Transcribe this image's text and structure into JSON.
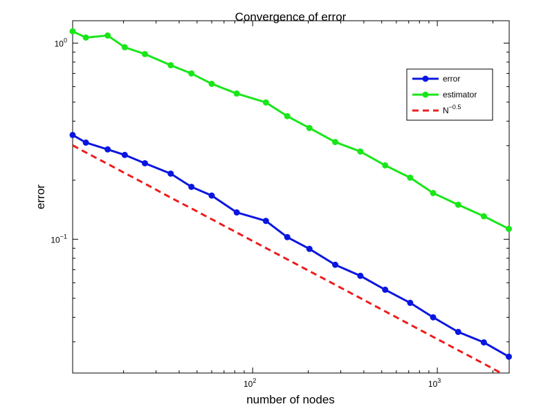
{
  "chart_data": {
    "type": "line",
    "title": "Convergence of error",
    "x_label": "number of nodes",
    "y_label": "error",
    "xscale": "log",
    "yscale": "log",
    "x": [
      10.6,
      12.5,
      16.4,
      20.3,
      26.1,
      36,
      46.6,
      60,
      82,
      118,
      154,
      203,
      280,
      383,
      522,
      713,
      949,
      1297,
      1786,
      2439
    ],
    "series": [
      {
        "name": "error",
        "color": "#0a16e0",
        "marker": true,
        "dashed": false,
        "values": [
          0.34,
          0.311,
          0.287,
          0.269,
          0.244,
          0.216,
          0.185,
          0.167,
          0.137,
          0.124,
          0.1025,
          0.0893,
          0.0741,
          0.0651,
          0.0553,
          0.0474,
          0.04,
          0.0337,
          0.0298,
          0.0252
        ]
      },
      {
        "name": "estimator",
        "color": "#19e619",
        "marker": true,
        "dashed": false,
        "values": [
          1.148,
          1.067,
          1.093,
          0.952,
          0.879,
          0.771,
          0.7,
          0.62,
          0.553,
          0.498,
          0.424,
          0.369,
          0.313,
          0.28,
          0.238,
          0.206,
          0.172,
          0.15,
          0.131,
          0.113
        ]
      },
      {
        "name": "N",
        "name_superscript": "−0.5",
        "color": "#ee1c1c",
        "marker": false,
        "dashed": true,
        "values": [
          0.301,
          0.277,
          0.242,
          0.2175,
          0.192,
          0.163,
          0.1436,
          0.1265,
          0.1082,
          0.0902,
          0.079,
          0.0688,
          0.0586,
          0.0501,
          0.0429,
          0.0367,
          0.0318,
          0.0272,
          0.0232,
          0.0198
        ]
      }
    ],
    "xlim": [
      10.6,
      2450
    ],
    "ylim": [
      0.0208,
      1.3
    ],
    "xticks": [
      {
        "value": 100,
        "label": "10",
        "exponent": "2"
      },
      {
        "value": 1000,
        "label": "10",
        "exponent": "3"
      }
    ],
    "yticks": [
      {
        "value": 0.1,
        "label": "10",
        "exponent": "−1"
      },
      {
        "value": 1,
        "label": "10",
        "exponent": "0"
      }
    ],
    "xminorticks": [
      20,
      30,
      40,
      50,
      60,
      70,
      80,
      90,
      200,
      300,
      400,
      500,
      600,
      700,
      800,
      900,
      2000
    ],
    "yminorticks": [
      0.03,
      0.04,
      0.05,
      0.06,
      0.07,
      0.08,
      0.09,
      0.2,
      0.3,
      0.4,
      0.5,
      0.6,
      0.7,
      0.8,
      0.9
    ],
    "legend": "upper right",
    "grid": false
  }
}
